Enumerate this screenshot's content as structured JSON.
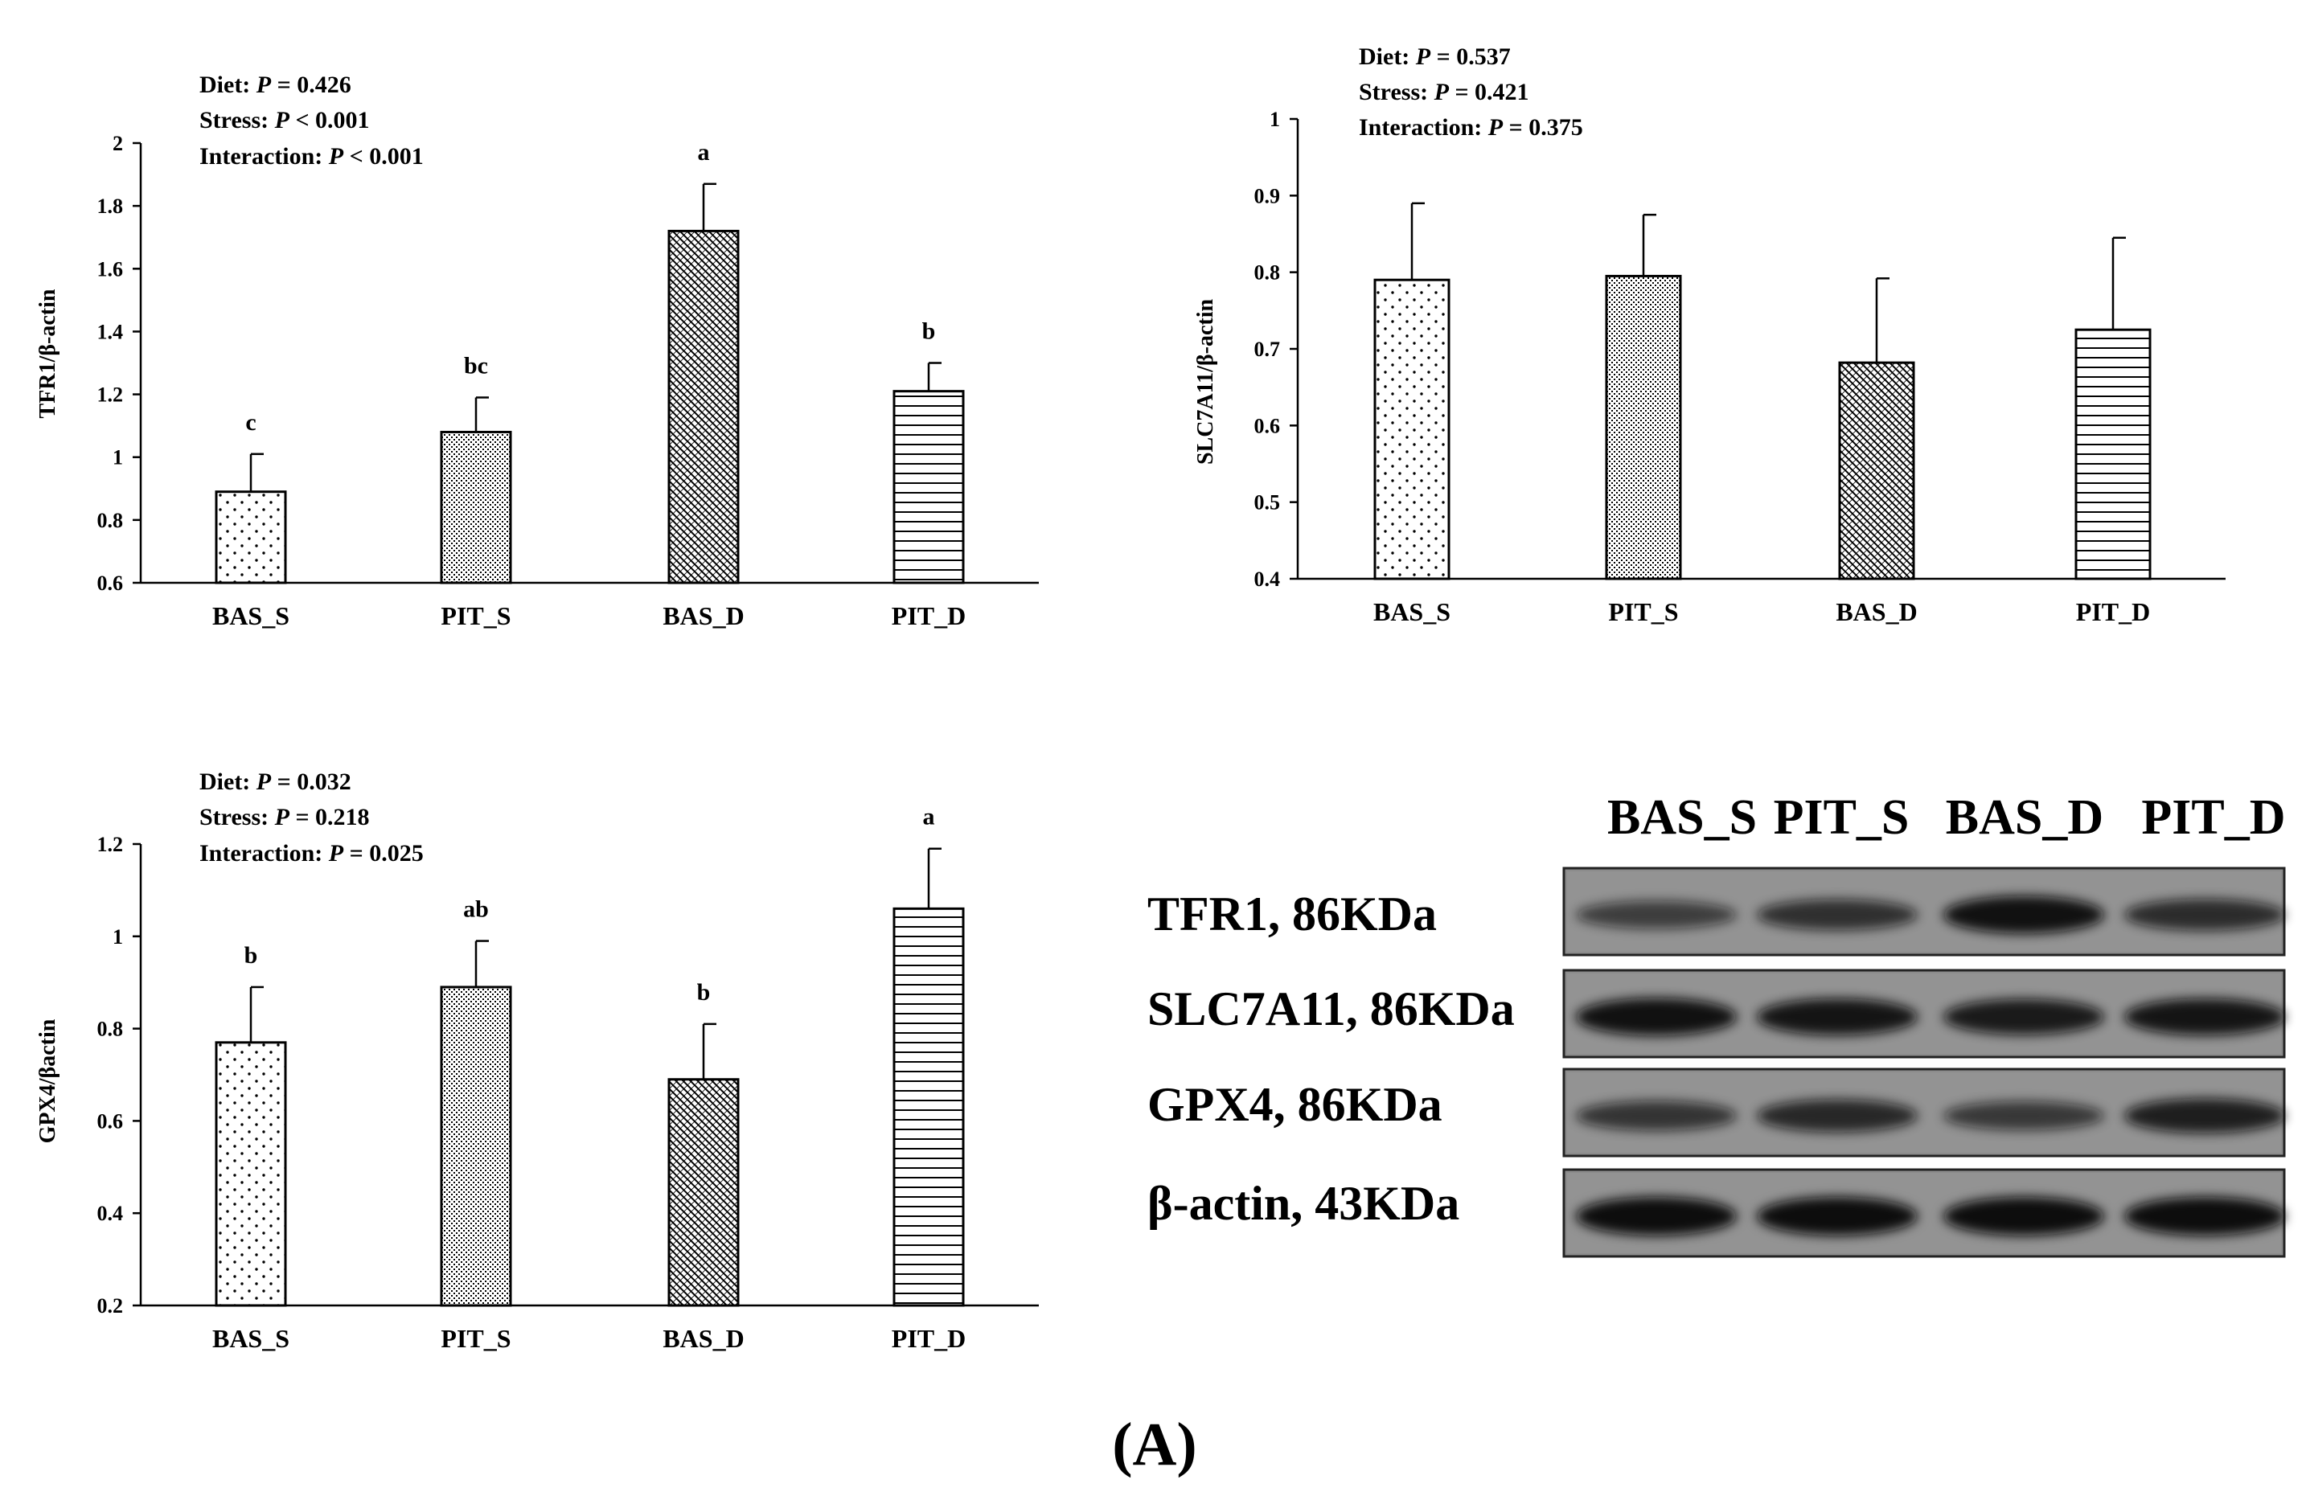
{
  "chart_data": [
    {
      "type": "bar",
      "title": "",
      "ylabel": "TFR1/β-actin",
      "xlabel": "",
      "categories": [
        "BAS_S",
        "PIT_S",
        "BAS_D",
        "PIT_D"
      ],
      "values": [
        0.89,
        1.08,
        1.72,
        1.21
      ],
      "errors": [
        0.12,
        0.11,
        0.15,
        0.09
      ],
      "significance": [
        "c",
        "bc",
        "a",
        "b"
      ],
      "ylim": [
        0.6,
        2
      ],
      "yticks": [
        0.6,
        0.8,
        1,
        1.2,
        1.4,
        1.6,
        1.8,
        2
      ],
      "ytick_labels": [
        "0.6",
        "0.8",
        "1",
        "1.2",
        "1.4",
        "1.6",
        "1.8",
        "2"
      ],
      "stats": [
        {
          "label": "Diet: ",
          "p": "P",
          "rest": " = 0.426"
        },
        {
          "label": "Stress: ",
          "p": "P",
          "rest": " < 0.001"
        },
        {
          "label": "Interaction: ",
          "p": "P",
          "rest": " < 0.001"
        }
      ]
    },
    {
      "type": "bar",
      "title": "",
      "ylabel": "SLC7A11/β-actin",
      "xlabel": "",
      "categories": [
        "BAS_S",
        "PIT_S",
        "BAS_D",
        "PIT_D"
      ],
      "values": [
        0.79,
        0.795,
        0.682,
        0.725
      ],
      "errors": [
        0.1,
        0.08,
        0.11,
        0.12
      ],
      "significance": [
        "",
        "",
        "",
        ""
      ],
      "ylim": [
        0.4,
        1
      ],
      "yticks": [
        0.4,
        0.5,
        0.6,
        0.7,
        0.8,
        0.9,
        1
      ],
      "ytick_labels": [
        "0.4",
        "0.5",
        "0.6",
        "0.7",
        "0.8",
        "0.9",
        "1"
      ],
      "stats": [
        {
          "label": "Diet: ",
          "p": "P",
          "rest": " = 0.537"
        },
        {
          "label": "Stress: ",
          "p": "P",
          "rest": " = 0.421"
        },
        {
          "label": "Interaction: ",
          "p": "P",
          "rest": " = 0.375"
        }
      ]
    },
    {
      "type": "bar",
      "title": "",
      "ylabel": "GPX4/βactin",
      "xlabel": "",
      "categories": [
        "BAS_S",
        "PIT_S",
        "BAS_D",
        "PIT_D"
      ],
      "values": [
        0.77,
        0.89,
        0.69,
        1.06
      ],
      "errors": [
        0.12,
        0.1,
        0.12,
        0.13
      ],
      "significance": [
        "b",
        "ab",
        "b",
        "a"
      ],
      "ylim": [
        0.2,
        1.2
      ],
      "yticks": [
        0.2,
        0.4,
        0.6,
        0.8,
        1,
        1.2
      ],
      "ytick_labels": [
        "0.2",
        "0.4",
        "0.6",
        "0.8",
        "1",
        "1.2"
      ],
      "stats": [
        {
          "label": "Diet: ",
          "p": "P",
          "rest": " = 0.032"
        },
        {
          "label": "Stress: ",
          "p": "P",
          "rest": " = 0.218"
        },
        {
          "label": "Interaction: ",
          "p": "P",
          "rest": " = 0.025"
        }
      ]
    }
  ],
  "western_blot": {
    "lanes": [
      "BAS_S",
      "PIT_S",
      "BAS_D",
      "PIT_D"
    ],
    "rows": [
      {
        "label": "TFR1, 86KDa",
        "intensity": [
          0.45,
          0.6,
          0.95,
          0.65
        ]
      },
      {
        "label": "SLC7A11, 86KDa",
        "intensity": [
          0.95,
          0.9,
          0.85,
          0.9
        ]
      },
      {
        "label": "GPX4, 86KDa",
        "intensity": [
          0.55,
          0.7,
          0.5,
          0.8
        ]
      },
      {
        "label": "β-actin, 43KDa",
        "intensity": [
          1.0,
          1.0,
          1.0,
          1.0
        ]
      }
    ]
  },
  "panel_label": "(A)",
  "colors": {
    "ink": "#000000",
    "background": "#ffffff",
    "membrane": "#8c8c8c",
    "band": "#0d0d0d"
  }
}
